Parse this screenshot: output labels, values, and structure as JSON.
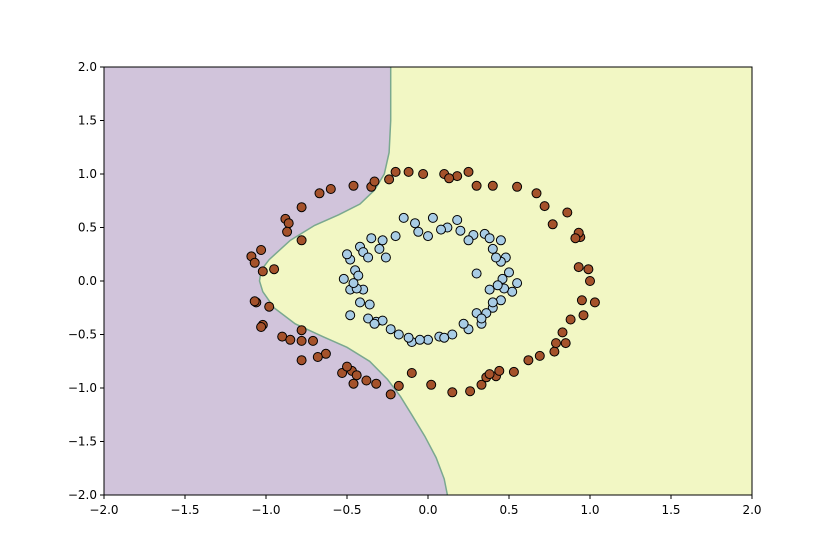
{
  "chart_data": {
    "type": "scatter",
    "title": "",
    "xlabel": "",
    "ylabel": "",
    "xlim": [
      -2.0,
      2.0
    ],
    "ylim": [
      -2.0,
      2.0
    ],
    "x_ticks": [
      "−2.0",
      "−1.5",
      "−1.0",
      "−0.5",
      "0.0",
      "0.5",
      "1.0",
      "1.5",
      "2.0"
    ],
    "y_ticks": [
      "2.0",
      "1.5",
      "1.0",
      "0.5",
      "0.0",
      "−0.5",
      "−1.0",
      "−1.5",
      "−2.0"
    ],
    "x_tick_values": [
      -2.0,
      -1.5,
      -1.0,
      -0.5,
      0.0,
      0.5,
      1.0,
      1.5,
      2.0
    ],
    "y_tick_values": [
      2.0,
      1.5,
      1.0,
      0.5,
      0.0,
      -0.5,
      -1.0,
      -1.5,
      -2.0
    ],
    "grid": false,
    "colors": {
      "region_outer": "#d1c4db",
      "region_inner": "#f2f7c4",
      "boundary": "#7aa88f",
      "outer_points": "#a5522b",
      "inner_points": "#a8cce5",
      "edge": "#000000"
    },
    "decision_boundary": [
      [
        -0.23,
        2.0
      ],
      [
        -0.23,
        1.5
      ],
      [
        -0.24,
        1.2
      ],
      [
        -0.27,
        1.0
      ],
      [
        -0.33,
        0.85
      ],
      [
        -0.42,
        0.72
      ],
      [
        -0.55,
        0.62
      ],
      [
        -0.7,
        0.52
      ],
      [
        -0.85,
        0.38
      ],
      [
        -0.98,
        0.2
      ],
      [
        -1.03,
        0.1
      ],
      [
        -1.04,
        0.0
      ],
      [
        -1.02,
        -0.1
      ],
      [
        -0.95,
        -0.25
      ],
      [
        -0.82,
        -0.4
      ],
      [
        -0.65,
        -0.52
      ],
      [
        -0.5,
        -0.62
      ],
      [
        -0.36,
        -0.75
      ],
      [
        -0.25,
        -0.92
      ],
      [
        -0.17,
        -1.08
      ],
      [
        -0.1,
        -1.25
      ],
      [
        -0.02,
        -1.45
      ],
      [
        0.05,
        -1.65
      ],
      [
        0.1,
        -1.85
      ],
      [
        0.12,
        -2.0
      ]
    ],
    "series": [
      {
        "class": 1,
        "points": [
          [
            -0.2,
            1.02
          ],
          [
            -0.12,
            1.02
          ],
          [
            -0.03,
            1.0
          ],
          [
            0.1,
            1.0
          ],
          [
            0.25,
            1.02
          ],
          [
            -0.35,
            0.88
          ],
          [
            -0.46,
            0.89
          ],
          [
            -0.6,
            0.86
          ],
          [
            -0.67,
            0.82
          ],
          [
            -0.78,
            0.69
          ],
          [
            -0.88,
            0.58
          ],
          [
            -1.03,
            0.29
          ],
          [
            -1.09,
            0.23
          ],
          [
            -0.78,
            0.38
          ],
          [
            -1.07,
            0.17
          ],
          [
            -1.02,
            0.09
          ],
          [
            -0.95,
            0.11
          ],
          [
            -1.06,
            -0.2
          ],
          [
            -0.98,
            -0.24
          ],
          [
            -1.02,
            -0.41
          ],
          [
            -0.9,
            -0.52
          ],
          [
            -0.78,
            -0.56
          ],
          [
            -0.71,
            -0.56
          ],
          [
            -0.63,
            -0.68
          ],
          [
            -0.68,
            -0.71
          ],
          [
            -0.78,
            -0.74
          ],
          [
            -0.47,
            -0.84
          ],
          [
            -0.53,
            -0.86
          ],
          [
            -0.46,
            -0.96
          ],
          [
            -0.38,
            -0.93
          ],
          [
            -0.32,
            -0.96
          ],
          [
            -0.23,
            -1.06
          ],
          [
            -0.18,
            -0.98
          ],
          [
            -0.1,
            -0.86
          ],
          [
            0.02,
            -0.97
          ],
          [
            0.15,
            -1.04
          ],
          [
            0.26,
            -1.03
          ],
          [
            0.33,
            -0.97
          ],
          [
            0.36,
            -0.9
          ],
          [
            0.42,
            -0.89
          ],
          [
            0.53,
            -0.85
          ],
          [
            0.62,
            -0.74
          ],
          [
            0.69,
            -0.7
          ],
          [
            0.78,
            -0.66
          ],
          [
            0.79,
            -0.58
          ],
          [
            0.88,
            -0.36
          ],
          [
            0.96,
            -0.32
          ],
          [
            0.95,
            -0.18
          ],
          [
            1.03,
            -0.2
          ],
          [
            0.93,
            0.13
          ],
          [
            1.0,
            0.0
          ],
          [
            0.99,
            0.11
          ],
          [
            0.94,
            0.41
          ],
          [
            0.93,
            0.45
          ],
          [
            0.91,
            0.4
          ],
          [
            0.86,
            0.64
          ],
          [
            0.77,
            0.53
          ],
          [
            0.72,
            0.7
          ],
          [
            0.67,
            0.82
          ],
          [
            0.55,
            0.88
          ],
          [
            0.4,
            0.89
          ],
          [
            0.3,
            0.89
          ],
          [
            -0.33,
            0.93
          ],
          [
            -0.24,
            0.95
          ],
          [
            0.18,
            0.98
          ],
          [
            0.13,
            0.96
          ],
          [
            -0.86,
            0.54
          ],
          [
            -0.87,
            0.46
          ],
          [
            -0.85,
            -0.55
          ],
          [
            -0.78,
            -0.46
          ],
          [
            0.83,
            -0.48
          ],
          [
            0.85,
            -0.58
          ],
          [
            0.44,
            -0.84
          ],
          [
            0.38,
            -0.87
          ],
          [
            -0.44,
            -0.88
          ],
          [
            -0.5,
            -0.8
          ],
          [
            -1.07,
            -0.19
          ],
          [
            -1.03,
            -0.43
          ]
        ]
      },
      {
        "class": 0,
        "points": [
          [
            -0.15,
            0.59
          ],
          [
            -0.08,
            0.54
          ],
          [
            0.03,
            0.59
          ],
          [
            0.12,
            0.5
          ],
          [
            0.18,
            0.57
          ],
          [
            0.28,
            0.43
          ],
          [
            0.35,
            0.44
          ],
          [
            0.45,
            0.38
          ],
          [
            0.4,
            0.3
          ],
          [
            0.48,
            0.22
          ],
          [
            0.45,
            0.18
          ],
          [
            0.5,
            0.08
          ],
          [
            0.46,
            0.02
          ],
          [
            0.55,
            -0.02
          ],
          [
            0.52,
            -0.1
          ],
          [
            0.45,
            -0.18
          ],
          [
            0.4,
            -0.25
          ],
          [
            0.36,
            -0.3
          ],
          [
            0.33,
            -0.4
          ],
          [
            0.25,
            -0.45
          ],
          [
            0.15,
            -0.5
          ],
          [
            0.07,
            -0.52
          ],
          [
            0.0,
            -0.55
          ],
          [
            -0.1,
            -0.57
          ],
          [
            -0.18,
            -0.5
          ],
          [
            -0.23,
            -0.45
          ],
          [
            -0.32,
            -0.38
          ],
          [
            -0.37,
            -0.35
          ],
          [
            -0.42,
            -0.2
          ],
          [
            -0.48,
            -0.08
          ],
          [
            -0.52,
            0.02
          ],
          [
            -0.45,
            0.1
          ],
          [
            -0.48,
            0.2
          ],
          [
            -0.42,
            0.32
          ],
          [
            -0.35,
            0.4
          ],
          [
            -0.28,
            0.38
          ],
          [
            -0.2,
            0.42
          ],
          [
            -0.06,
            0.46
          ],
          [
            0.08,
            0.48
          ],
          [
            0.2,
            0.47
          ],
          [
            0.38,
            0.4
          ],
          [
            0.42,
            0.22
          ],
          [
            0.3,
            0.07
          ],
          [
            0.38,
            -0.08
          ],
          [
            0.4,
            -0.2
          ],
          [
            0.22,
            -0.4
          ],
          [
            -0.05,
            -0.55
          ],
          [
            -0.28,
            -0.37
          ],
          [
            -0.36,
            -0.22
          ],
          [
            -0.4,
            -0.08
          ],
          [
            -0.43,
            0.05
          ],
          [
            -0.4,
            0.27
          ],
          [
            -0.3,
            0.3
          ],
          [
            -0.37,
            0.22
          ],
          [
            -0.26,
            0.22
          ],
          [
            0.0,
            0.42
          ],
          [
            0.25,
            0.38
          ],
          [
            -0.5,
            0.25
          ],
          [
            -0.48,
            -0.32
          ],
          [
            -0.33,
            -0.4
          ],
          [
            0.3,
            -0.3
          ],
          [
            0.33,
            -0.35
          ],
          [
            0.47,
            -0.07
          ],
          [
            0.43,
            -0.04
          ],
          [
            0.1,
            -0.53
          ],
          [
            -0.12,
            -0.53
          ],
          [
            -0.44,
            -0.07
          ],
          [
            -0.46,
            -0.02
          ]
        ]
      }
    ]
  }
}
